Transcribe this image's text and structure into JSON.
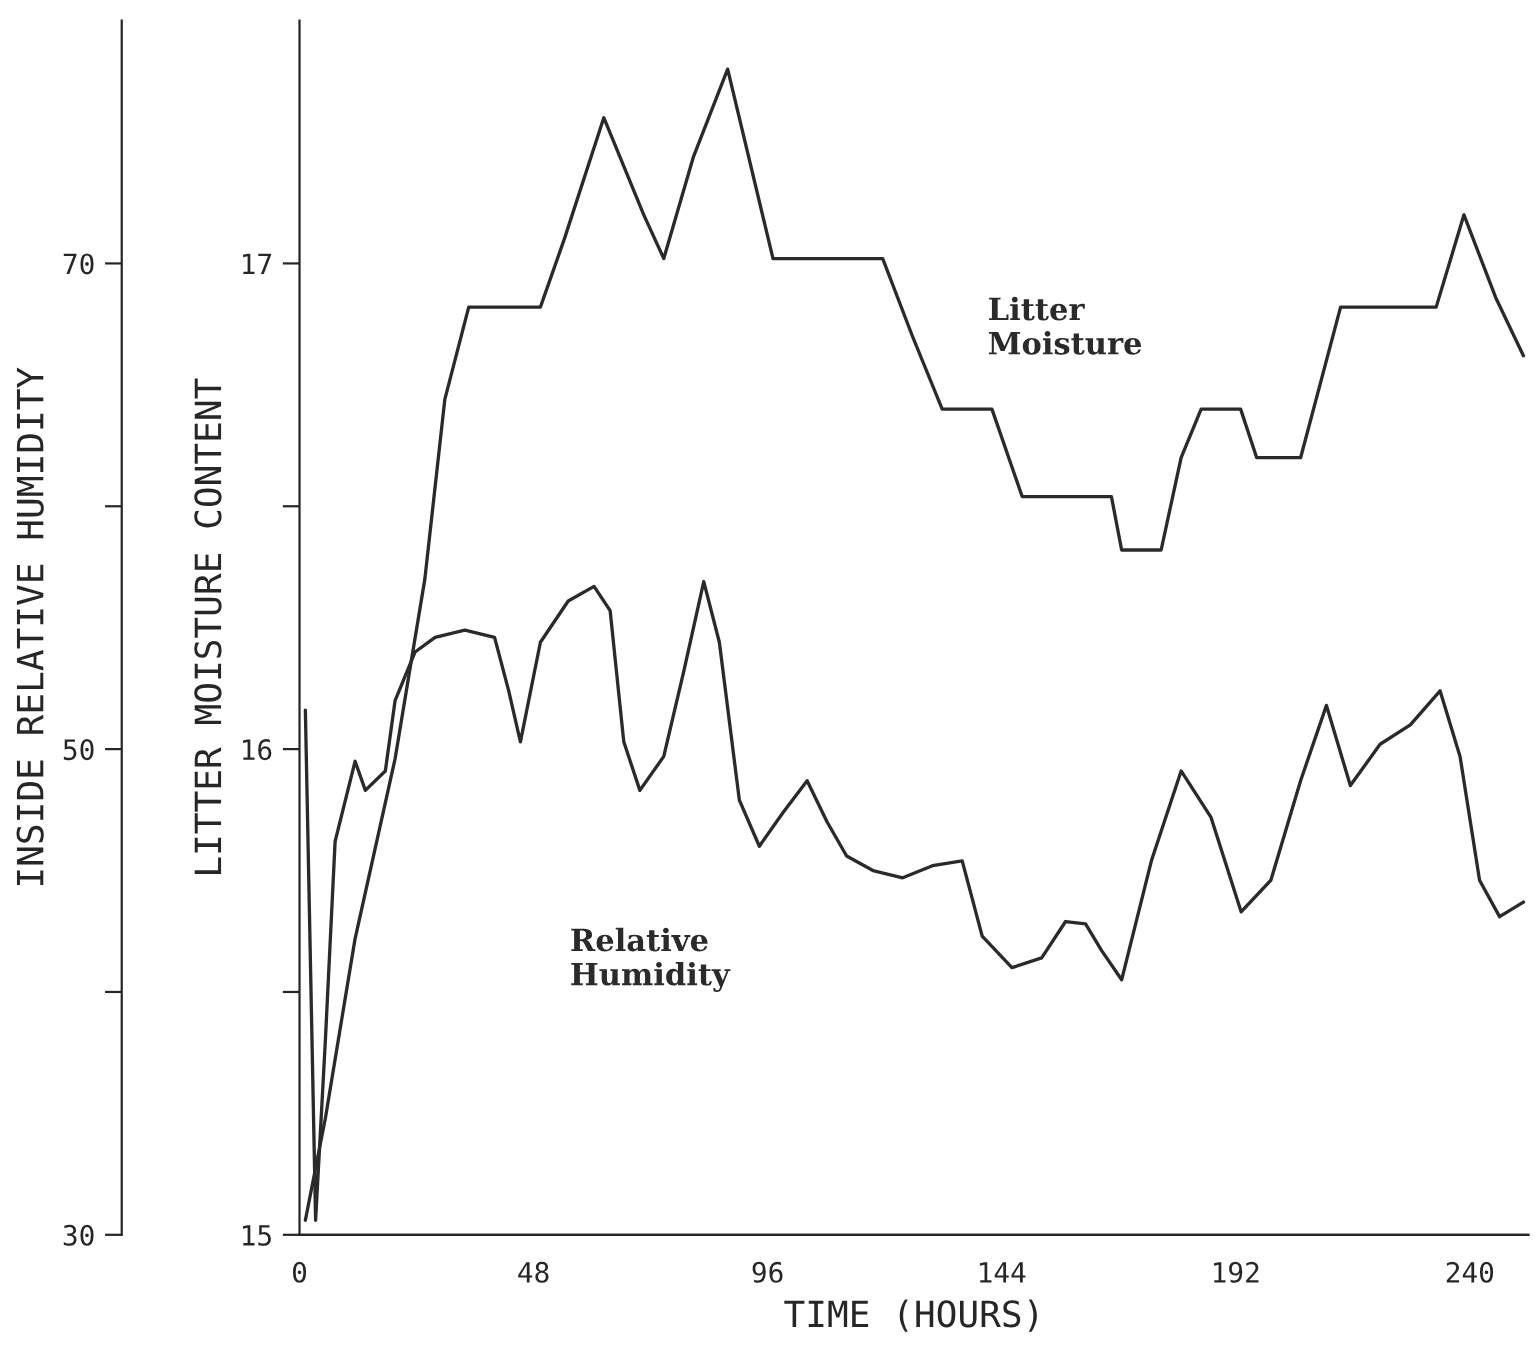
{
  "chart_data": {
    "type": "line",
    "xlabel": "TIME (HOURS)",
    "ylabel": "INSIDE RELATIVE HUMIDITY",
    "y2label": "LITTER MOISTURE CONTENT",
    "x": [
      1.2,
      5.3,
      11.4,
      19.6,
      25.7,
      29.8,
      34.7,
      49.4,
      54.3,
      62.4,
      70.6,
      74.7,
      80.8,
      87.8,
      97.1,
      119.6,
      125.7,
      131.8,
      142,
      148.2,
      166.5,
      168.6,
      176.7,
      180.8,
      184.9,
      193,
      196.3,
      205.3,
      213.5,
      233.1,
      238.8,
      245.3,
      251
    ],
    "series": [
      {
        "name": "Litter\nMoisture",
        "color": "#2a2a2a",
        "axis": "y2",
        "values": [
          15.03,
          15.24,
          15.61,
          15.98,
          16.35,
          16.72,
          16.91,
          16.91,
          17.05,
          17.3,
          17.1,
          17.01,
          17.22,
          17.4,
          17.01,
          17.01,
          16.85,
          16.7,
          16.7,
          16.52,
          16.52,
          16.41,
          16.41,
          16.6,
          16.7,
          16.7,
          16.6,
          16.6,
          16.91,
          16.91,
          17.1,
          16.93,
          16.81
        ]
      },
      {
        "name": "Relative\nHumidity",
        "color": "#2a2a2a",
        "x": [
          1.2,
          3.3,
          5.3,
          7.3,
          11.4,
          13.5,
          17.6,
          19.6,
          23.7,
          27.8,
          33.9,
          40,
          42.9,
          45.3,
          49.4,
          55.1,
          60.4,
          63.7,
          66.5,
          69.8,
          74.7,
          78.8,
          82.9,
          86.1,
          90.2,
          94.3,
          99.2,
          104.1,
          108.2,
          112.2,
          117.6,
          123.7,
          129.8,
          135.9,
          140,
          146.1,
          152.2,
          157.1,
          161.2,
          164.5,
          168.6,
          174.7,
          180.8,
          186.9,
          193.1,
          199.2,
          205.3,
          210.6,
          215.5,
          221.6,
          227.8,
          233.9,
          238,
          242,
          246.1,
          251
        ],
        "values": [
          51.6,
          30.6,
          38.0,
          46.2,
          49.5,
          48.3,
          49.1,
          52.0,
          54.0,
          54.6,
          54.9,
          54.6,
          52.4,
          50.3,
          54.4,
          56.1,
          56.7,
          55.7,
          50.3,
          48.3,
          49.7,
          53.2,
          56.9,
          54.4,
          47.9,
          46.0,
          47.4,
          48.7,
          47.0,
          45.6,
          45.0,
          44.7,
          45.2,
          45.4,
          42.3,
          41.0,
          41.4,
          42.9,
          42.8,
          41.7,
          40.5,
          45.4,
          49.1,
          47.2,
          43.3,
          44.6,
          48.7,
          51.8,
          48.5,
          50.2,
          51.0,
          52.4,
          49.7,
          44.6,
          43.1,
          43.7
        ]
      }
    ],
    "xlim": [
      0,
      252
    ],
    "xticks": [
      0,
      48,
      96,
      144,
      192,
      240
    ],
    "ylim": [
      30,
      80
    ],
    "yticks": [
      30,
      {
        "value": 40,
        "label": null
      },
      50,
      {
        "value": 60,
        "label": null
      },
      70
    ],
    "y2lim": [
      15,
      17.5
    ],
    "y2ticks": [
      15,
      {
        "value": 15.5,
        "label": null
      },
      16,
      {
        "value": 16.5,
        "label": null
      },
      17
    ],
    "grid": false,
    "legend": false
  }
}
